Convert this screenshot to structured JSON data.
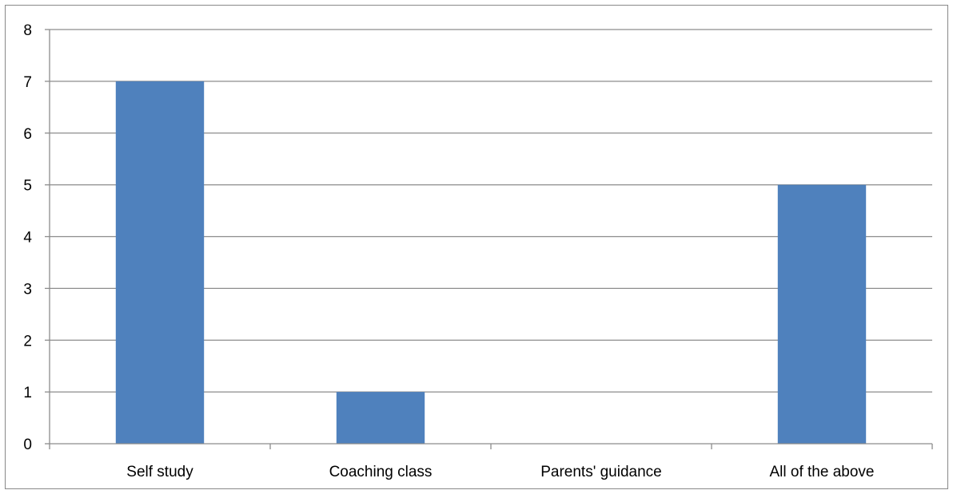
{
  "chart_data": {
    "type": "bar",
    "title": "",
    "xlabel": "",
    "ylabel": "",
    "categories": [
      "Self study",
      "Coaching class",
      "Parents' guidance",
      "All of the above"
    ],
    "values": [
      7,
      1,
      0,
      5
    ],
    "ylim": [
      0,
      8
    ],
    "yticks": [
      0,
      1,
      2,
      3,
      4,
      5,
      6,
      7,
      8
    ],
    "grid": true,
    "legend": "none",
    "bar_color": "#4F81BD"
  }
}
